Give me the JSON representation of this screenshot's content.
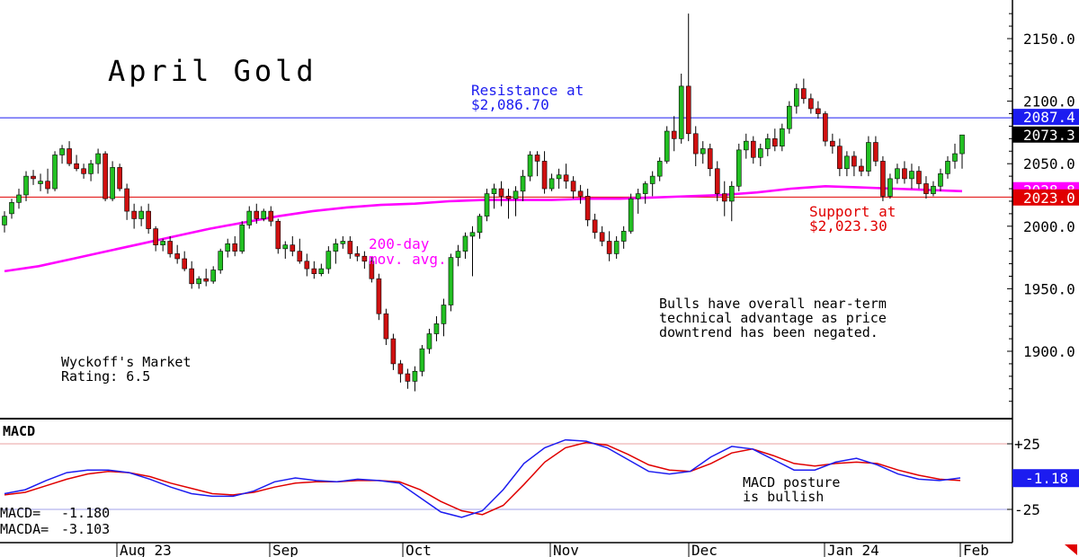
{
  "chart_data": [
    {
      "type": "candlestick",
      "title": "April Gold",
      "y_axis_ticks": [
        "2150.0",
        "2100.0",
        "2050.0",
        "2000.0",
        "1950.0",
        "1900.0"
      ],
      "y_range": [
        1870,
        2175
      ],
      "x_ticks": [
        "Aug 23",
        "Sep",
        "Oct",
        "Nov",
        "Dec",
        "Jan 24",
        "Feb"
      ],
      "price_tags": [
        {
          "label": "2087.4",
          "color": "#1c1cf0"
        },
        {
          "label": "2073.3",
          "color": "#000000"
        },
        {
          "label": "2028.8",
          "color": "#ff00ff"
        },
        {
          "label": "2023.0",
          "color": "#e00000"
        }
      ],
      "resistance": {
        "value": 2086.7,
        "label_line1": "Resistance at",
        "label_line2": "$2,086.70",
        "color": "#1c1cf0"
      },
      "support": {
        "value": 2023.3,
        "label_line1": "Support at",
        "label_line2": "$2,023.30",
        "color": "#e00000"
      },
      "moving_average": {
        "label_line1": "200-day",
        "label_line2": "mov. avg.",
        "color": "#ff00ff",
        "values": [
          1964,
          1968,
          1974,
          1980,
          1986,
          1992,
          1998,
          2003,
          2008,
          2012,
          2015,
          2017,
          2018,
          2020,
          2021,
          2021,
          2021,
          2022,
          2022,
          2023,
          2024,
          2025,
          2027,
          2030,
          2032,
          2031,
          2030,
          2029,
          2028
        ]
      },
      "annotations": [
        {
          "lines": [
            "Bulls have overall near-term",
            "technical advantage as price",
            "downtrend has been negated."
          ]
        },
        {
          "lines": [
            "Wyckoff's Market",
            "Rating: 6.5"
          ]
        }
      ],
      "candles": [
        [
          2001,
          2012,
          1995,
          2008
        ],
        [
          2010,
          2022,
          2006,
          2019
        ],
        [
          2019,
          2030,
          2014,
          2025
        ],
        [
          2025,
          2044,
          2020,
          2040
        ],
        [
          2040,
          2045,
          2033,
          2038
        ],
        [
          2034,
          2042,
          2028,
          2036
        ],
        [
          2036,
          2046,
          2026,
          2030
        ],
        [
          2030,
          2060,
          2028,
          2057
        ],
        [
          2057,
          2065,
          2050,
          2062
        ],
        [
          2062,
          2068,
          2048,
          2050
        ],
        [
          2050,
          2057,
          2044,
          2046
        ],
        [
          2046,
          2050,
          2038,
          2042
        ],
        [
          2042,
          2053,
          2036,
          2050
        ],
        [
          2050,
          2062,
          2042,
          2058
        ],
        [
          2058,
          2060,
          2020,
          2022
        ],
        [
          2022,
          2052,
          2020,
          2047
        ],
        [
          2047,
          2050,
          2028,
          2030
        ],
        [
          2030,
          2034,
          2005,
          2012
        ],
        [
          2012,
          2018,
          1998,
          2006
        ],
        [
          2006,
          2016,
          2000,
          2012
        ],
        [
          2012,
          2018,
          1994,
          1998
        ],
        [
          1998,
          2000,
          1980,
          1985
        ],
        [
          1985,
          1990,
          1980,
          1988
        ],
        [
          1988,
          1992,
          1975,
          1978
        ],
        [
          1978,
          1985,
          1970,
          1974
        ],
        [
          1974,
          1980,
          1964,
          1966
        ],
        [
          1966,
          1972,
          1950,
          1954
        ],
        [
          1954,
          1960,
          1950,
          1958
        ],
        [
          1958,
          1966,
          1952,
          1956
        ],
        [
          1956,
          1968,
          1954,
          1965
        ],
        [
          1965,
          1982,
          1962,
          1980
        ],
        [
          1980,
          1990,
          1975,
          1986
        ],
        [
          1986,
          1992,
          1976,
          1980
        ],
        [
          1980,
          2004,
          1978,
          2001
        ],
        [
          2001,
          2016,
          1998,
          2012
        ],
        [
          2012,
          2018,
          2002,
          2006
        ],
        [
          2006,
          2014,
          2004,
          2012
        ],
        [
          2012,
          2016,
          2000,
          2004
        ],
        [
          2004,
          2006,
          1978,
          1982
        ],
        [
          1982,
          1988,
          1974,
          1985
        ],
        [
          1985,
          1992,
          1976,
          1980
        ],
        [
          1980,
          1990,
          1970,
          1972
        ],
        [
          1972,
          1978,
          1960,
          1966
        ],
        [
          1966,
          1972,
          1958,
          1962
        ],
        [
          1962,
          1970,
          1960,
          1966
        ],
        [
          1966,
          1984,
          1962,
          1980
        ],
        [
          1980,
          1990,
          1970,
          1986
        ],
        [
          1986,
          1992,
          1982,
          1988
        ],
        [
          1988,
          1992,
          1974,
          1978
        ],
        [
          1978,
          1984,
          1972,
          1976
        ],
        [
          1976,
          1980,
          1966,
          1972
        ],
        [
          1972,
          1976,
          1955,
          1958
        ],
        [
          1958,
          1962,
          1925,
          1930
        ],
        [
          1930,
          1934,
          1905,
          1910
        ],
        [
          1910,
          1914,
          1885,
          1890
        ],
        [
          1890,
          1893,
          1875,
          1882
        ],
        [
          1882,
          1886,
          1870,
          1876
        ],
        [
          1876,
          1888,
          1868,
          1884
        ],
        [
          1884,
          1905,
          1880,
          1902
        ],
        [
          1902,
          1918,
          1898,
          1914
        ],
        [
          1914,
          1928,
          1908,
          1922
        ],
        [
          1922,
          1942,
          1912,
          1937
        ],
        [
          1937,
          1978,
          1932,
          1975
        ],
        [
          1975,
          1985,
          1968,
          1980
        ],
        [
          1980,
          1995,
          1974,
          1992
        ],
        [
          1992,
          2000,
          1960,
          1995
        ],
        [
          1995,
          2010,
          1990,
          2008
        ],
        [
          2008,
          2030,
          2004,
          2026
        ],
        [
          2026,
          2034,
          2014,
          2030
        ],
        [
          2030,
          2036,
          2016,
          2024
        ],
        [
          2024,
          2030,
          2006,
          2022
        ],
        [
          2022,
          2032,
          2008,
          2028
        ],
        [
          2028,
          2045,
          2020,
          2040
        ],
        [
          2040,
          2060,
          2036,
          2057
        ],
        [
          2057,
          2060,
          2040,
          2052
        ],
        [
          2052,
          2060,
          2026,
          2030
        ],
        [
          2030,
          2042,
          2028,
          2038
        ],
        [
          2038,
          2046,
          2030,
          2041
        ],
        [
          2041,
          2050,
          2030,
          2036
        ],
        [
          2036,
          2040,
          2022,
          2028
        ],
        [
          2028,
          2033,
          2018,
          2024
        ],
        [
          2024,
          2030,
          2000,
          2005
        ],
        [
          2005,
          2010,
          1990,
          1995
        ],
        [
          1995,
          2000,
          1984,
          1988
        ],
        [
          1988,
          1996,
          1972,
          1978
        ],
        [
          1978,
          1992,
          1974,
          1988
        ],
        [
          1988,
          2000,
          1982,
          1996
        ],
        [
          1996,
          2026,
          1994,
          2022
        ],
        [
          2022,
          2030,
          2010,
          2026
        ],
        [
          2026,
          2036,
          2018,
          2034
        ],
        [
          2034,
          2044,
          2024,
          2040
        ],
        [
          2040,
          2055,
          2036,
          2052
        ],
        [
          2052,
          2080,
          2050,
          2076
        ],
        [
          2076,
          2088,
          2060,
          2070
        ],
        [
          2070,
          2122,
          2066,
          2112
        ],
        [
          2112,
          2170,
          2068,
          2074
        ],
        [
          2074,
          2080,
          2048,
          2058
        ],
        [
          2058,
          2068,
          2050,
          2062
        ],
        [
          2062,
          2066,
          2040,
          2046
        ],
        [
          2046,
          2052,
          2020,
          2026
        ],
        [
          2026,
          2036,
          2008,
          2020
        ],
        [
          2020,
          2036,
          2004,
          2032
        ],
        [
          2032,
          2066,
          2028,
          2061
        ],
        [
          2061,
          2074,
          2054,
          2068
        ],
        [
          2068,
          2072,
          2050,
          2055
        ],
        [
          2055,
          2066,
          2048,
          2062
        ],
        [
          2062,
          2074,
          2056,
          2070
        ],
        [
          2070,
          2078,
          2060,
          2064
        ],
        [
          2064,
          2082,
          2060,
          2078
        ],
        [
          2078,
          2100,
          2074,
          2096
        ],
        [
          2096,
          2114,
          2090,
          2110
        ],
        [
          2110,
          2118,
          2098,
          2102
        ],
        [
          2102,
          2106,
          2090,
          2094
        ],
        [
          2094,
          2100,
          2086,
          2090
        ],
        [
          2090,
          2092,
          2064,
          2068
        ],
        [
          2068,
          2074,
          2058,
          2064
        ],
        [
          2064,
          2070,
          2040,
          2046
        ],
        [
          2046,
          2060,
          2040,
          2056
        ],
        [
          2056,
          2060,
          2040,
          2048
        ],
        [
          2048,
          2054,
          2040,
          2044
        ],
        [
          2044,
          2072,
          2040,
          2067
        ],
        [
          2067,
          2072,
          2048,
          2052
        ],
        [
          2052,
          2056,
          2020,
          2024
        ],
        [
          2024,
          2042,
          2022,
          2038
        ],
        [
          2038,
          2050,
          2034,
          2046
        ],
        [
          2046,
          2052,
          2034,
          2038
        ],
        [
          2038,
          2050,
          2030,
          2044
        ],
        [
          2044,
          2048,
          2030,
          2034
        ],
        [
          2034,
          2040,
          2022,
          2026
        ],
        [
          2026,
          2036,
          2024,
          2032
        ],
        [
          2032,
          2046,
          2028,
          2042
        ],
        [
          2042,
          2056,
          2038,
          2052
        ],
        [
          2052,
          2066,
          2046,
          2058
        ],
        [
          2058,
          2070,
          2046,
          2073
        ]
      ]
    },
    {
      "type": "line",
      "title": "MACD",
      "y_axis_ticks": [
        "+25",
        "-25"
      ],
      "y_range": [
        -30,
        30
      ],
      "reference_lines": [
        25,
        -25
      ],
      "readout": [
        {
          "label": "MACD=",
          "value": "-1.180"
        },
        {
          "label": "MACDA=",
          "value": "-3.103"
        }
      ],
      "price_tag": {
        "label": "-1.18",
        "color": "#1c1cf0"
      },
      "annotation": {
        "lines": [
          "MACD posture",
          "is bullish"
        ]
      },
      "series": [
        {
          "name": "MACD",
          "color": "#1c1cf0",
          "values": [
            -13,
            -10,
            -3,
            3,
            5,
            5,
            3,
            -2,
            -8,
            -13,
            -15,
            -15,
            -11,
            -4,
            -1,
            -3,
            -4,
            -2,
            -3,
            -5,
            -16,
            -27,
            -31,
            -26,
            -10,
            10,
            22,
            28,
            27,
            22,
            13,
            4,
            2,
            4,
            15,
            23,
            21,
            13,
            5,
            5,
            11,
            14,
            9,
            2,
            -2,
            -3,
            -1
          ]
        },
        {
          "name": "MACDA",
          "color": "#e00000",
          "values": [
            -14,
            -12,
            -7,
            -2,
            2,
            4,
            3,
            0,
            -5,
            -9,
            -13,
            -14,
            -12,
            -8,
            -5,
            -4,
            -4,
            -3,
            -3,
            -4,
            -10,
            -19,
            -26,
            -29,
            -22,
            -6,
            11,
            22,
            26,
            24,
            17,
            9,
            5,
            4,
            10,
            18,
            21,
            16,
            10,
            8,
            10,
            11,
            10,
            5,
            1,
            -2,
            -3
          ]
        }
      ]
    }
  ]
}
